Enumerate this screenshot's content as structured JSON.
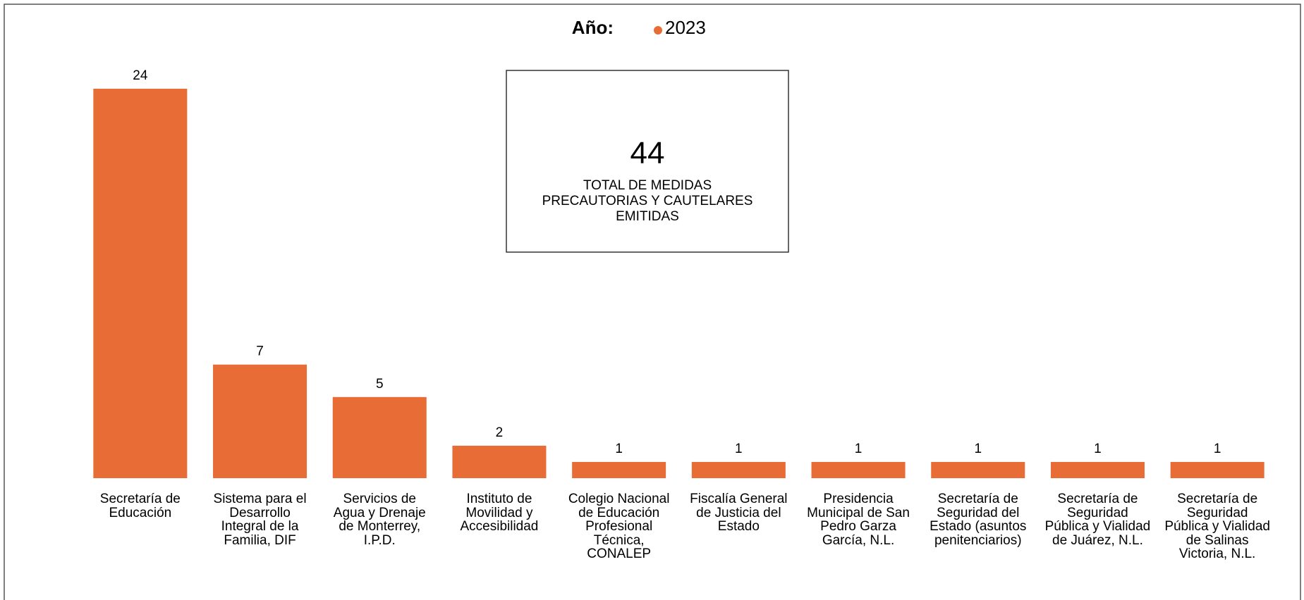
{
  "chart_data": {
    "type": "bar",
    "legend_title": "Año:",
    "categories": [
      "Secretaría de Educación",
      "Sistema para el Desarrollo Integral de la Familia, DIF",
      "Servicios de Agua y Drenaje de Monterrey, I.P.D.",
      "Instituto de Movilidad y Accesibilidad",
      "Colegio Nacional de Educación Profesional Técnica, CONALEP",
      "Fiscalía General de Justicia del Estado",
      "Presidencia Municipal de San Pedro Garza García, N.L.",
      "Secretaría de Seguridad del Estado (asuntos penitenciarios)",
      "Secretaría de Seguridad Pública y Vialidad de Juárez, N.L.",
      "Secretaría de Seguridad Pública y Vialidad de Salinas Victoria, N.L."
    ],
    "series": [
      {
        "name": "2023",
        "color": "#e86c35",
        "values": [
          24,
          7,
          5,
          2,
          1,
          1,
          1,
          1,
          1,
          1
        ]
      }
    ],
    "annotation": {
      "value": 44,
      "label": "TOTAL DE MEDIDAS PRECAUTORIAS Y CAUTELARES EMITIDAS"
    }
  }
}
